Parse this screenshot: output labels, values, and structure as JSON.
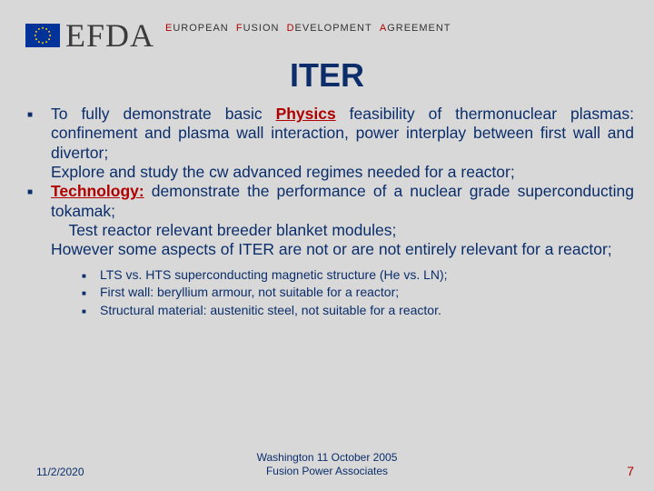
{
  "header": {
    "logo_text": "EFDA",
    "flag_bg": "#003399",
    "star_color": "#ffcc00",
    "subtitle_words": [
      {
        "accent": "E",
        "rest": "UROPEAN"
      },
      {
        "accent": "F",
        "rest": "USION"
      },
      {
        "accent": "D",
        "rest": "EVELOPMENT"
      },
      {
        "accent": "A",
        "rest": "GREEMENT"
      }
    ]
  },
  "title": "ITER",
  "bullets": [
    {
      "segments": [
        {
          "t": "To fully demonstrate basic "
        },
        {
          "t": "Physics",
          "hl": true
        },
        {
          "t": " feasibility of thermonuclear plasmas: confinement and plasma wall interaction, power interplay between first wall and divertor;"
        },
        {
          "br": true
        },
        {
          "t": "Explore and study the cw advanced regimes needed for a reactor;"
        }
      ]
    },
    {
      "segments": [
        {
          "t": "Technology:",
          "hl": true
        },
        {
          "t": " demonstrate the performance of a nuclear grade superconducting tokamak;"
        },
        {
          "br": true
        },
        {
          "t": "    Test reactor relevant breeder blanket modules;"
        },
        {
          "br": true
        },
        {
          "t": "However some aspects of ITER are not or are not entirely relevant for a reactor;"
        }
      ]
    }
  ],
  "sub_bullets": [
    "LTS vs. HTS superconducting magnetic structure (He vs. LN);",
    "First wall: beryllium armour, not suitable for a reactor;",
    "Structural material: austenitic steel, not suitable for a reactor."
  ],
  "footer": {
    "date": "11/2/2020",
    "center_line1": "Washington 11 October 2005",
    "center_line2": "Fusion Power Associates",
    "page": "7"
  },
  "colors": {
    "background": "#d8d8d8",
    "title": "#0b2e6b",
    "body": "#0b2e6b",
    "accent_red": "#b00000"
  }
}
